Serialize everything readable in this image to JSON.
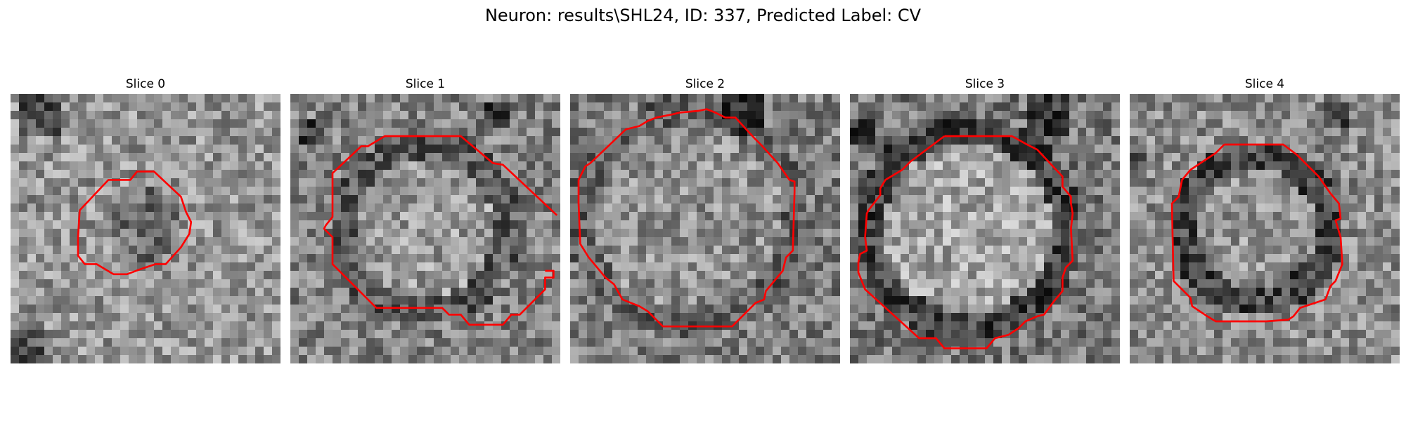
{
  "figure": {
    "title": "Neuron: results\\SHL24, ID: 337, Predicted Label: CV",
    "contour_color": "#ff0000",
    "colormap": "gray"
  },
  "slices": [
    {
      "title": "Slice 0"
    },
    {
      "title": "Slice 1"
    },
    {
      "title": "Slice 2"
    },
    {
      "title": "Slice 3"
    },
    {
      "title": "Slice 4"
    }
  ]
}
